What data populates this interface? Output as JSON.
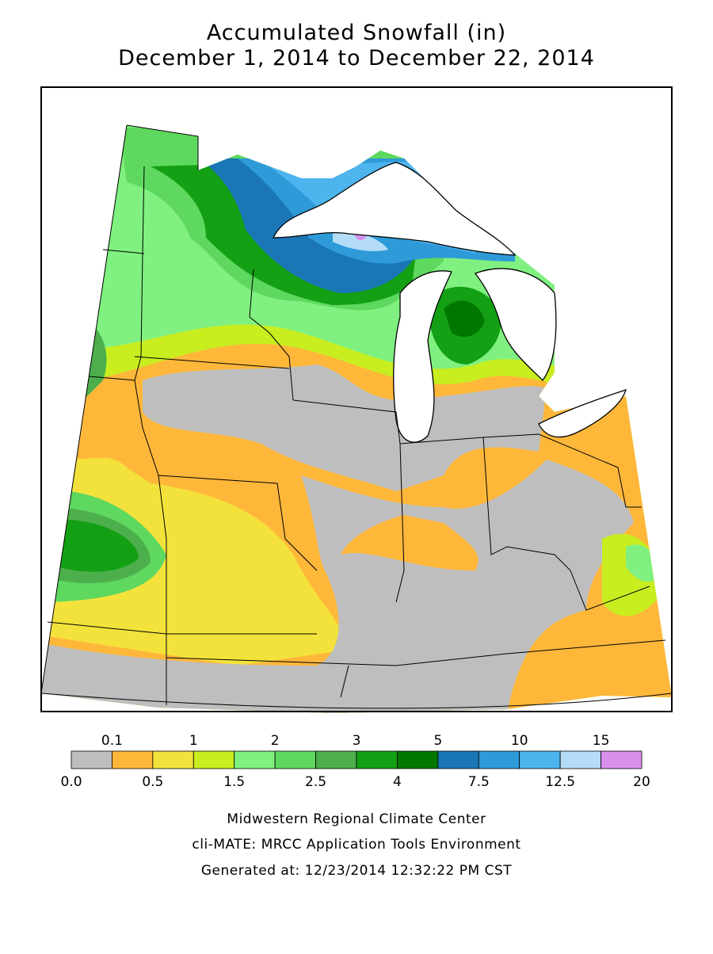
{
  "title": {
    "line1": "Accumulated Snowfall (in)",
    "line2": "December 1, 2014 to December 22, 2014"
  },
  "legend": {
    "colors": [
      "#bebebe",
      "#ffb73a",
      "#f4e23c",
      "#c8ee20",
      "#80f080",
      "#5ed85e",
      "#4caf4c",
      "#14a014",
      "#007800",
      "#1a76b5",
      "#2e9ad8",
      "#4db4ee",
      "#b4dcf8",
      "#d890ec"
    ],
    "labels": [
      "0.0",
      "0.1",
      "0.5",
      "1",
      "1.5",
      "2",
      "2.5",
      "3",
      "4",
      "5",
      "7.5",
      "10",
      "12.5",
      "15",
      "20"
    ]
  },
  "footer": {
    "lines": [
      "Midwestern Regional Climate Center",
      "cli-MATE: MRCC Application Tools Environment",
      "Generated at: 12/23/2014 12:32:22 PM CST"
    ]
  }
}
